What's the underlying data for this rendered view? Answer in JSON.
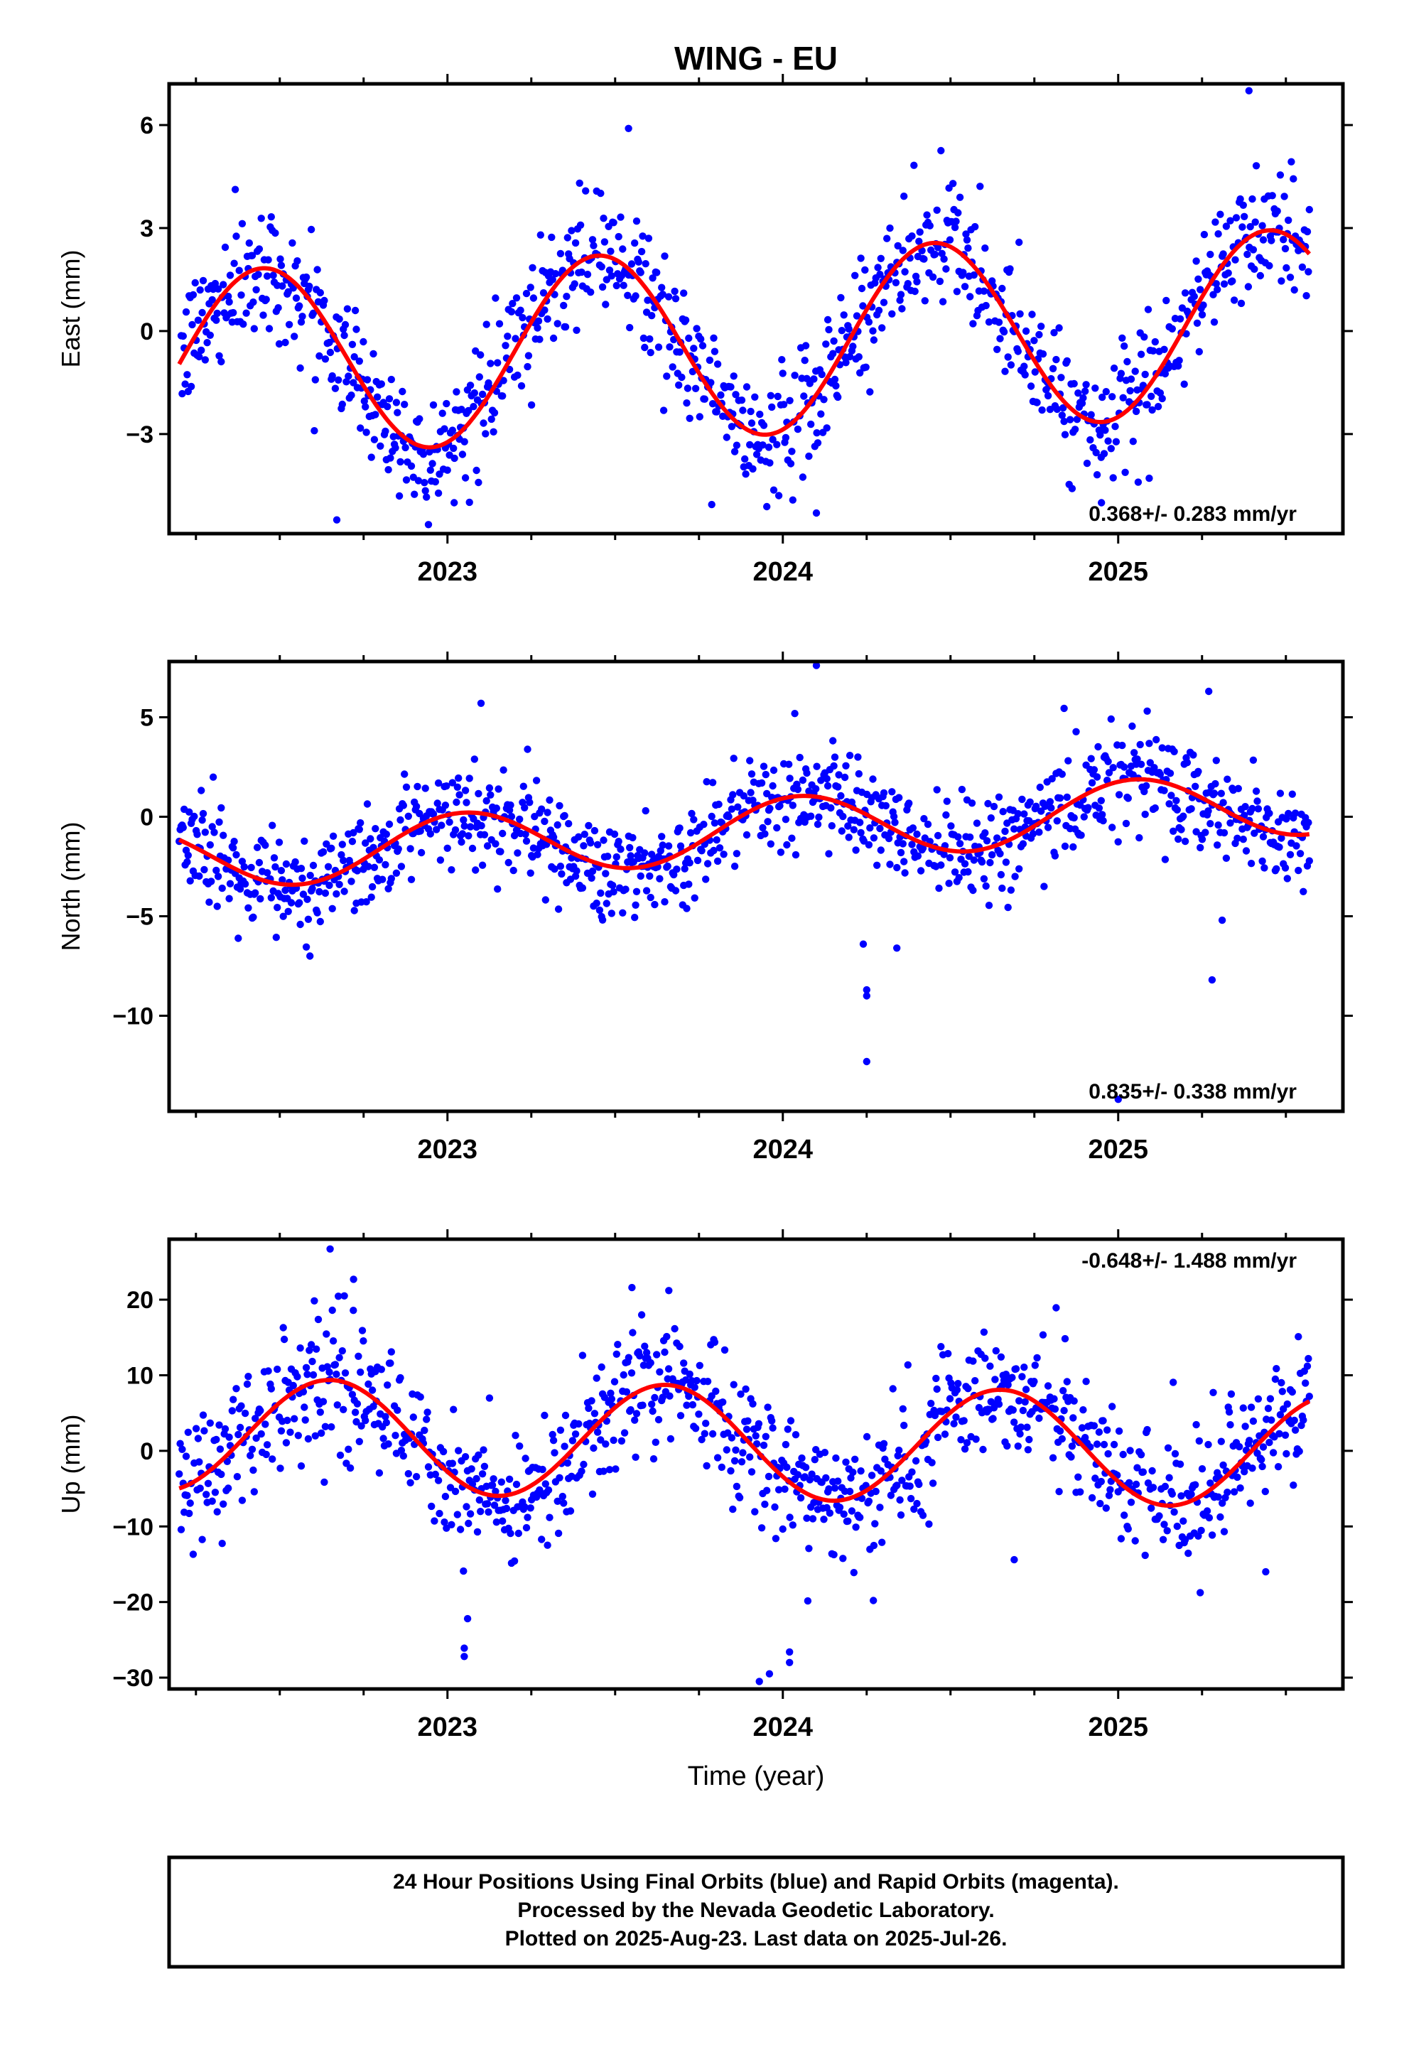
{
  "title": "WING - EU",
  "footer": {
    "lines": [
      "24 Hour Positions Using Final Orbits (blue) and Rapid Orbits (magenta).",
      "Processed by the Nevada Geodetic Laboratory.",
      "Plotted on 2025-Aug-23. Last data on 2025-Jul-26."
    ]
  },
  "colors": {
    "data": "#0000ff",
    "model": "#ff0000",
    "frame": "#000000"
  },
  "chart_data": [
    {
      "type": "scatter",
      "ylabel": "East (mm)",
      "xlabel": "",
      "rate_label": "0.368+/- 0.283 mm/yr",
      "rate_position": "bottom-right",
      "xlim": [
        2022.17,
        2025.67
      ],
      "ylim": [
        -5.9,
        7.2
      ],
      "xticks": [
        "2023",
        "2024",
        "2025"
      ],
      "yticks": [
        -3,
        0,
        3,
        6
      ],
      "model": {
        "offset": -0.3,
        "trend": 0.368,
        "annual_amp": 2.7,
        "annual_peak": 0.45,
        "semiannual_amp": 0.0,
        "semiannual_peak": 0.0
      },
      "scatter": {
        "sigma": 0.9,
        "outliers": [
          [
            2022.67,
            -5.5
          ],
          [
            2023.02,
            -5.0
          ],
          [
            2023.54,
            5.9
          ],
          [
            2024.1,
            -5.3
          ],
          [
            2025.39,
            7.0
          ],
          [
            2024.95,
            -5.0
          ]
        ]
      }
    },
    {
      "type": "scatter",
      "ylabel": "North (mm)",
      "xlabel": "",
      "rate_label": "0.835+/- 0.338 mm/yr",
      "rate_position": "bottom-right",
      "xlim": [
        2022.17,
        2025.67
      ],
      "ylim": [
        -14.8,
        7.8
      ],
      "xticks": [
        "2023",
        "2024",
        "2025"
      ],
      "yticks": [
        -10,
        -5,
        0,
        5
      ],
      "model": {
        "offset": -0.6,
        "trend": 0.835,
        "annual_amp": 1.6,
        "annual_peak": 0.05,
        "semiannual_amp": 0.0,
        "semiannual_peak": 0.0
      },
      "scatter": {
        "sigma": 1.3,
        "outliers": [
          [
            2022.59,
            -7.0
          ],
          [
            2023.1,
            5.7
          ],
          [
            2024.25,
            -12.3
          ],
          [
            2024.25,
            -9.0
          ],
          [
            2024.25,
            -8.7
          ],
          [
            2024.24,
            -6.4
          ],
          [
            2024.34,
            -6.6
          ],
          [
            2024.1,
            7.6
          ],
          [
            2025.28,
            -8.2
          ],
          [
            2025.31,
            -5.2
          ],
          [
            2025.27,
            6.3
          ],
          [
            2025.0,
            -14.2
          ]
        ]
      }
    },
    {
      "type": "scatter",
      "ylabel": "Up (mm)",
      "xlabel": "Time (year)",
      "rate_label": "-0.648+/- 1.488 mm/yr",
      "rate_position": "top-right",
      "xlim": [
        2022.17,
        2025.67
      ],
      "ylim": [
        -31.5,
        28.0
      ],
      "xticks": [
        "2023",
        "2024",
        "2025"
      ],
      "yticks": [
        -30,
        -20,
        -10,
        0,
        10,
        20
      ],
      "model": {
        "offset": 1.0,
        "trend": -0.648,
        "annual_amp": 7.5,
        "annual_peak": 0.65,
        "semiannual_amp": 0.0,
        "semiannual_peak": 0.0
      },
      "scatter": {
        "sigma": 4.5,
        "outliers": [
          [
            2022.65,
            26.7
          ],
          [
            2022.72,
            22.7
          ],
          [
            2023.05,
            -27.2
          ],
          [
            2023.05,
            -26.1
          ],
          [
            2023.06,
            -22.2
          ],
          [
            2023.55,
            21.6
          ],
          [
            2023.66,
            21.2
          ],
          [
            2023.93,
            -30.5
          ],
          [
            2023.96,
            -29.5
          ],
          [
            2024.02,
            -28.0
          ],
          [
            2024.02,
            -26.6
          ],
          [
            2024.27,
            -19.8
          ],
          [
            2024.69,
            -14.4
          ],
          [
            2025.44,
            -16.0
          ]
        ]
      }
    }
  ]
}
